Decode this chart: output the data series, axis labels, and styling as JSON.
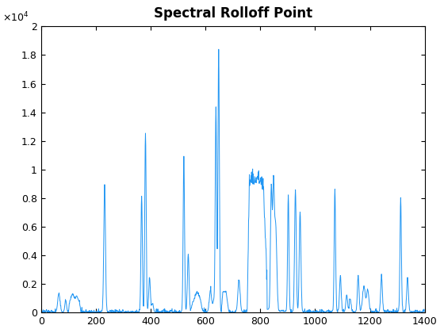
{
  "title": "Spectral Rolloff Point",
  "line_color": "#2196F3",
  "xlim": [
    0,
    1400
  ],
  "ylim": [
    0,
    20000
  ],
  "ytick_values": [
    0,
    2000,
    4000,
    6000,
    8000,
    10000,
    12000,
    14000,
    16000,
    18000,
    20000
  ],
  "ytick_labels": [
    "0",
    "0.2",
    "0.4",
    "0.6",
    "0.8",
    "1",
    "1.2",
    "1.4",
    "1.6",
    "1.8",
    "2"
  ],
  "xtick_values": [
    0,
    200,
    400,
    600,
    800,
    1000,
    1200,
    1400
  ],
  "figsize": [
    5.6,
    4.2
  ],
  "dpi": 100,
  "background_color": "#ffffff",
  "linewidth": 0.7
}
